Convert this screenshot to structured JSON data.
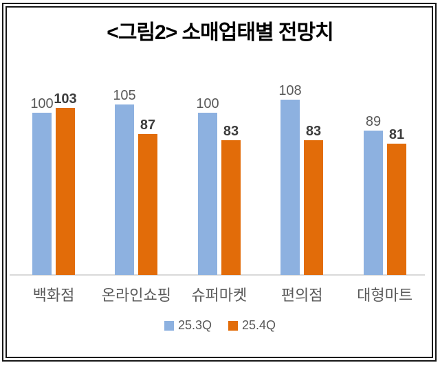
{
  "chart_data": {
    "type": "bar",
    "title": "<그림2> 소매업태별 전망치",
    "categories": [
      "백화점",
      "온라인쇼핑",
      "슈퍼마켓",
      "편의점",
      "대형마트"
    ],
    "series": [
      {
        "name": "25.3Q",
        "color": "#8DB1E0",
        "values": [
          100,
          105,
          100,
          108,
          89
        ],
        "value_label_bold": false
      },
      {
        "name": "25.4Q",
        "color": "#E26C09",
        "values": [
          103,
          87,
          83,
          83,
          81
        ],
        "value_label_bold": true
      }
    ],
    "xlabel": "",
    "ylabel": "",
    "ylim": [
      0,
      110
    ],
    "grid": false,
    "axis_ticks_shown": false,
    "value_labels_shown": true,
    "legend_position": "bottom"
  },
  "colors": {
    "series_1": "#8DB1E0",
    "series_2": "#E26C09",
    "text_gray": "#595959",
    "value_label_bold": "#3d3d3d",
    "frame": "#161616",
    "axis_line": "#d9d9d9",
    "background": "#ffffff"
  }
}
